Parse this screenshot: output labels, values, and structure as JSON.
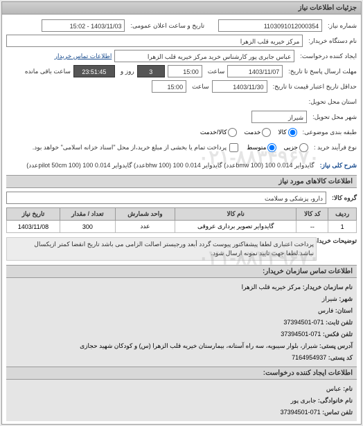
{
  "panel": {
    "title": "جزئیات اطلاعات نیاز"
  },
  "fields": {
    "need_number_label": "شماره نیاز:",
    "need_number": "1103091012000354",
    "public_announce_label": "تاریخ و ساعت اعلان عمومی:",
    "public_announce": "1403/11/03 - 15:02",
    "device_name_label": "نام دستگاه خریدار:",
    "device_name": "مرکز خیریه قلب الزهرا",
    "requester_label": "ایجاد کننده درخواست:",
    "requester": "عباس جابری پور کارشناس خرید مرکز خیریه قلب الزهرا",
    "contact_link": "اطلاعات تماس خریدار",
    "deadline_label": "مهلت ارسال پاسخ تا تاریخ:",
    "deadline_date": "1403/11/07",
    "time_label": "ساعت",
    "deadline_time": "15:00",
    "days_label": "روز و",
    "days": "3",
    "remaining_label": "ساعت باقی مانده",
    "remaining": "23:51:45",
    "validity_label": "حداقل تاریخ اعتبار قیمت تا تاریخ:",
    "validity_date": "1403/11/30",
    "validity_time": "15:00",
    "province_label": "استان محل تحویل:",
    "city_label": "شهر محل تحویل:",
    "city": "شیراز",
    "category_label": "طبقه بندی موضوعی:",
    "cat_goods": "کالا",
    "cat_service": "خدمت",
    "cat_both": "کالا/خدمت",
    "purchase_type_label": "نوع فرآیند خرید :",
    "pt_small": "جزیی",
    "pt_medium": "متوسط",
    "credit_note": "پرداخت تمام یا بخشی از مبلغ خرید،از محل \"اسناد خزانه اسلامی\" خواهد بود.",
    "need_desc_label": "شرح کلی نیاز:",
    "need_desc": "گایدوایر 0.014 100 (bmw 100عدد) گایدوایر 0.014 100 (bhw 100عدد) گایدوایر 0.014 100 (pilot 50cm 100عدد)"
  },
  "items_section_title": "اطلاعات کالاهای مورد نیاز",
  "group_label": "گروه کالا:",
  "group_value": "دارو، پزشکی و سلامت",
  "table": {
    "columns": [
      "ردیف",
      "کد کالا",
      "نام کالا",
      "واحد شمارش",
      "تعداد / مقدار",
      "تاریخ نیاز"
    ],
    "rows": [
      [
        "1",
        "--",
        "گایدوایر تصویر برداری عروقی",
        "عدد",
        "300",
        "1403/11/08"
      ]
    ]
  },
  "buyer_note_label": "توضیحات خریدار:",
  "buyer_note": "پرداخت اعتباری لطفا پیشفاکتور پیوست گردد أبعد ورجیستر اصالت الزامی می باشد تاریخ انقضا کمتر ازیکسال نباشد.لطفا جهت تایید نمونه ارسال شود.",
  "contact_section_title": "اطلاعات تماس سازمان خریدار:",
  "contact": {
    "org_label": "نام سازمان خریدار:",
    "org": "مرکز خیریه قلب الزهرا",
    "city_label": "شهر:",
    "city": "شیراز",
    "province_label": "استان:",
    "province": "فارس",
    "phone_label": "تلفن ثابت:",
    "phone": "071-37394501",
    "fax_label": "تلفن فکس:",
    "fax": "071-37394501",
    "addr_label": "آدرس پستی:",
    "addr": "شیراز، بلوار سیبویه، سه راه آستانه، بیمارستان خیریه قلب الزهرا (س) و کودکان شهید حجازی",
    "postal_label": "کد پستی:",
    "postal": "7164954937"
  },
  "creator_section_title": "اطلاعات ایجاد کننده درخواست:",
  "creator": {
    "name_label": "نام:",
    "name": "عباس",
    "lname_label": "نام خانوادگی:",
    "lname": "جابری پور",
    "phone_label": "تلفن تماس:",
    "phone": "071-37394501"
  },
  "watermark": "۰۲۱-۸۸۳۴۹۶۷۰",
  "colors": {
    "header_bg": "#c8c8c8",
    "link": "#1a4d8f",
    "dark_input_bg": "#555555"
  }
}
